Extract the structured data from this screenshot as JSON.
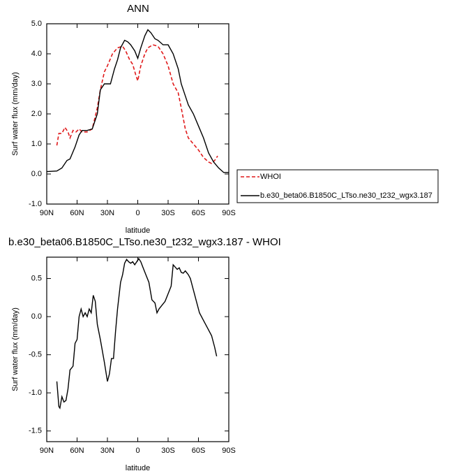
{
  "chart_data": [
    {
      "type": "line",
      "title": "ANN",
      "xlabel": "latitude",
      "ylabel": "Surf water flux (mm/day)",
      "xlim": [
        90,
        -90
      ],
      "xticks": [
        {
          "value": 90,
          "label": "90N"
        },
        {
          "value": 60,
          "label": "60N"
        },
        {
          "value": 30,
          "label": "30N"
        },
        0,
        {
          "value": -30,
          "label": "30S"
        },
        {
          "value": -60,
          "label": "60S"
        },
        {
          "value": -90,
          "label": "90S"
        }
      ],
      "ylim": [
        -1,
        5
      ],
      "yticks": [
        {
          "value": -1,
          "label": "-1.0"
        },
        {
          "value": 0,
          "label": "0.0"
        },
        {
          "value": 1,
          "label": "1.0"
        },
        {
          "value": 2,
          "label": "2.0"
        },
        {
          "value": 3,
          "label": "3.0"
        },
        {
          "value": 4,
          "label": "4.0"
        },
        {
          "value": 5,
          "label": "5.0"
        }
      ],
      "legend": "outside-right",
      "series": [
        {
          "name": "WHOI",
          "color": "#e0191a",
          "dashed": true,
          "x": [
            80,
            78,
            75,
            72,
            69,
            67,
            64,
            61,
            58,
            55,
            50,
            45,
            40,
            37,
            33,
            30,
            25,
            20,
            15,
            12,
            8,
            5,
            2,
            0,
            -3,
            -7,
            -10,
            -15,
            -20,
            -25,
            -30,
            -35,
            -40,
            -43,
            -47,
            -50,
            -55,
            -60,
            -65,
            -70,
            -73,
            -76,
            -79
          ],
          "values": [
            0.95,
            1.35,
            1.35,
            1.55,
            1.4,
            1.2,
            1.45,
            1.4,
            1.5,
            1.4,
            1.4,
            1.5,
            2.2,
            2.8,
            3.4,
            3.6,
            4.0,
            4.2,
            4.25,
            4.1,
            3.8,
            3.65,
            3.3,
            3.1,
            3.6,
            4.0,
            4.2,
            4.3,
            4.25,
            4.0,
            3.6,
            3.0,
            2.7,
            2.2,
            1.5,
            1.2,
            1.0,
            0.8,
            0.55,
            0.4,
            0.35,
            0.45,
            0.6
          ]
        },
        {
          "name": "b.e30_beta06.B1850C_LTso.ne30_t232_wgx3.187",
          "color": "#000000",
          "dashed": false,
          "x": [
            90,
            80,
            75,
            70,
            67,
            62,
            58,
            55,
            50,
            45,
            40,
            37,
            33,
            30,
            27,
            23,
            20,
            17,
            13,
            10,
            7,
            3,
            0,
            -3,
            -7,
            -10,
            -13,
            -17,
            -20,
            -25,
            -30,
            -35,
            -40,
            -43,
            -47,
            -50,
            -55,
            -60,
            -65,
            -70,
            -75,
            -80,
            -85,
            -90
          ],
          "values": [
            0.08,
            0.1,
            0.2,
            0.45,
            0.5,
            0.9,
            1.3,
            1.45,
            1.45,
            1.5,
            2.0,
            2.8,
            3.0,
            3.0,
            3.0,
            3.5,
            3.8,
            4.2,
            4.45,
            4.4,
            4.3,
            4.1,
            3.85,
            4.2,
            4.6,
            4.8,
            4.7,
            4.5,
            4.45,
            4.3,
            4.3,
            4.0,
            3.5,
            3.0,
            2.6,
            2.3,
            2.0,
            1.6,
            1.2,
            0.7,
            0.4,
            0.2,
            0.05,
            0.05
          ]
        }
      ]
    },
    {
      "type": "line",
      "title": "b.e30_beta06.B1850C_LTso.ne30_t232_wgx3.187 - WHOI",
      "xlabel": "latitude",
      "ylabel": "Surf water flux (mm/day)",
      "xlim": [
        90,
        -90
      ],
      "xticks": [
        {
          "value": 90,
          "label": "90N"
        },
        {
          "value": 60,
          "label": "60N"
        },
        {
          "value": 30,
          "label": "30N"
        },
        0,
        {
          "value": -30,
          "label": "30S"
        },
        {
          "value": -60,
          "label": "60S"
        },
        {
          "value": -90,
          "label": "90S"
        }
      ],
      "ylim": [
        -1.64,
        0.78
      ],
      "yticks": [
        {
          "value": -1.5,
          "label": "-1.5"
        },
        {
          "value": -1,
          "label": "-1.0"
        },
        {
          "value": -0.5,
          "label": "-0.5"
        },
        {
          "value": 0,
          "label": "0.0"
        },
        0.5
      ],
      "series": [
        {
          "color": "#000000",
          "dashed": false,
          "x": [
            80,
            78,
            77,
            75,
            73,
            71,
            69,
            67,
            64,
            62,
            60,
            58,
            56,
            54,
            52,
            50,
            48,
            46,
            44,
            42,
            40,
            37,
            35,
            33,
            30,
            28,
            26,
            24,
            22,
            20,
            17,
            15,
            13,
            11,
            9,
            7,
            5,
            3,
            1,
            -1,
            -3,
            -5,
            -8,
            -11,
            -14,
            -17,
            -19,
            -21,
            -24,
            -27,
            -30,
            -33,
            -35,
            -37,
            -39,
            -41,
            -43,
            -45,
            -47,
            -50,
            -52,
            -55,
            -58,
            -61,
            -65,
            -69,
            -73,
            -76,
            -78
          ],
          "values": [
            -0.85,
            -1.18,
            -1.2,
            -1.05,
            -1.12,
            -1.1,
            -0.95,
            -0.7,
            -0.65,
            -0.35,
            -0.3,
            0.0,
            0.1,
            0.0,
            0.05,
            0.0,
            0.1,
            0.05,
            0.28,
            0.2,
            -0.1,
            -0.3,
            -0.45,
            -0.6,
            -0.85,
            -0.75,
            -0.55,
            -0.55,
            -0.2,
            0.1,
            0.45,
            0.55,
            0.7,
            0.75,
            0.72,
            0.7,
            0.72,
            0.68,
            0.72,
            0.76,
            0.72,
            0.65,
            0.55,
            0.45,
            0.22,
            0.18,
            0.05,
            0.1,
            0.15,
            0.2,
            0.3,
            0.4,
            0.68,
            0.65,
            0.62,
            0.64,
            0.58,
            0.57,
            0.6,
            0.55,
            0.5,
            0.35,
            0.2,
            0.05,
            -0.05,
            -0.15,
            -0.25,
            -0.4,
            -0.52
          ]
        }
      ]
    }
  ]
}
